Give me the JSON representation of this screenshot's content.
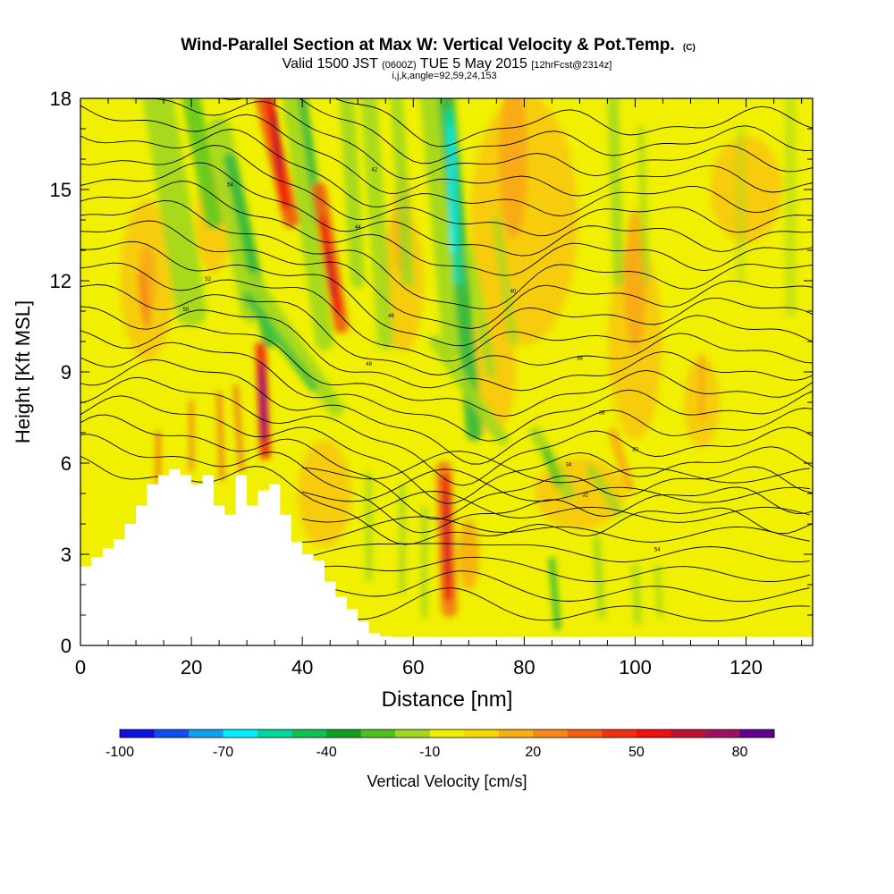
{
  "chart_data": {
    "type": "heatmap",
    "title": "Wind-Parallel Section at Max W: Vertical Velocity & Pot.Temp.",
    "title_mark": "(C)",
    "subtitle": {
      "valid": "Valid 1500 JST",
      "utc": "(0600Z)",
      "date": "TUE 5 May 2015",
      "forecast": "[12hrFcst@2314z]"
    },
    "indices": "i,j,k,angle=92,59,24,153",
    "xlabel": "Distance [nm]",
    "ylabel": "Height [Kft MSL]",
    "xlim": [
      0,
      132
    ],
    "ylim": [
      0,
      18
    ],
    "x_ticks": [
      "0",
      "20",
      "40",
      "60",
      "80",
      "100",
      "120"
    ],
    "y_ticks": [
      "0",
      "3",
      "6",
      "9",
      "12",
      "15",
      "18"
    ],
    "colorbar": {
      "label": "Vertical Velocity [cm/s]",
      "tick_labels": [
        "-100",
        "-70",
        "-40",
        "-10",
        "20",
        "50",
        "80"
      ],
      "colors": [
        "#1010e0",
        "#1050f0",
        "#10a0f0",
        "#00f0ff",
        "#00d8a0",
        "#10c050",
        "#10a020",
        "#50c020",
        "#a0d820",
        "#f0f000",
        "#f8d800",
        "#f8b010",
        "#f88818",
        "#f06010",
        "#f03010",
        "#f01010",
        "#c01030",
        "#a01060",
        "#600090"
      ]
    },
    "features": {
      "terrain_kft": [
        [
          0,
          2.6
        ],
        [
          2,
          2.9
        ],
        [
          4,
          3.2
        ],
        [
          6,
          3.5
        ],
        [
          8,
          4.0
        ],
        [
          10,
          4.6
        ],
        [
          12,
          5.3
        ],
        [
          14,
          5.6
        ],
        [
          16,
          5.8
        ],
        [
          18,
          5.6
        ],
        [
          20,
          5.3
        ],
        [
          22,
          5.6
        ],
        [
          24,
          4.6
        ],
        [
          26,
          4.3
        ],
        [
          28,
          5.6
        ],
        [
          30,
          4.6
        ],
        [
          32,
          5.1
        ],
        [
          34,
          5.3
        ],
        [
          36,
          4.3
        ],
        [
          38,
          3.4
        ],
        [
          40,
          3.0
        ],
        [
          42,
          2.8
        ],
        [
          44,
          2.1
        ],
        [
          46,
          1.6
        ],
        [
          48,
          1.2
        ],
        [
          50,
          0.8
        ],
        [
          52,
          0.4
        ],
        [
          54,
          0.3
        ],
        [
          56,
          0.2
        ]
      ],
      "strong_updrafts": [
        {
          "x": 33,
          "y": 8,
          "w": 85
        },
        {
          "x": 36,
          "y": 16,
          "w": 55
        },
        {
          "x": 45,
          "y": 12,
          "w": 55
        },
        {
          "x": 66,
          "y": 4,
          "w": 55
        }
      ],
      "strong_downdrafts": [
        {
          "x": 67,
          "y": 15,
          "w": -65
        },
        {
          "x": 34,
          "y": 12,
          "w": -45
        },
        {
          "x": 85,
          "y": 5.5,
          "w": -35
        }
      ],
      "isentrope_labels": [
        "54",
        "52",
        "50",
        "48",
        "46",
        "44",
        "42",
        "40",
        "38",
        "36",
        "34",
        "32",
        "30"
      ]
    }
  }
}
